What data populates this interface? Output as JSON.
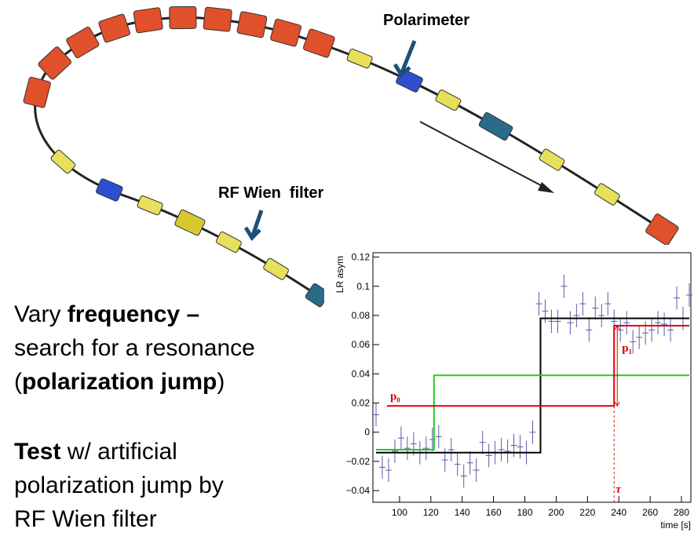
{
  "labels": {
    "polarimeter": "Polarimeter",
    "wien_filter": "RF Wien  filter"
  },
  "text_blocks": [
    {
      "lines": [
        [
          {
            "t": "Vary "
          },
          {
            "t": "frequency –",
            "b": true
          }
        ],
        [
          {
            "t": "search for a resonance"
          }
        ],
        [
          {
            "t": "("
          },
          {
            "t": "polarization jump",
            "b": true
          },
          {
            "t": ")"
          }
        ]
      ]
    },
    {
      "lines": [
        [
          {
            "t": "Test",
            "b": true
          },
          {
            "t": " w/ artificial"
          }
        ],
        [
          {
            "t": "polarization jump by"
          }
        ],
        [
          {
            "t": "RF Wien filter"
          }
        ]
      ]
    }
  ],
  "chart_data": {
    "type": "scatter",
    "ylabel": "LR asym",
    "xlabel": "time [s]",
    "color": "#5a5aa8",
    "x": [
      85,
      89,
      93,
      97,
      101,
      105,
      109,
      113,
      117,
      121,
      125,
      129,
      133,
      137,
      141,
      145,
      149,
      153,
      157,
      161,
      165,
      169,
      173,
      177,
      181,
      185,
      189,
      193,
      197,
      201,
      205,
      209,
      213,
      217,
      221,
      225,
      229,
      233,
      237,
      241,
      245,
      249,
      253,
      257,
      261,
      265,
      269,
      273,
      277,
      281,
      285
    ],
    "values": [
      0.012,
      -0.024,
      -0.026,
      -0.013,
      -0.004,
      -0.011,
      -0.008,
      -0.014,
      -0.011,
      -0.005,
      -0.003,
      -0.019,
      -0.012,
      -0.022,
      -0.03,
      -0.021,
      -0.026,
      -0.007,
      -0.016,
      -0.014,
      -0.012,
      -0.013,
      -0.009,
      -0.01,
      -0.014,
      0.0,
      0.088,
      0.083,
      0.076,
      0.076,
      0.1,
      0.075,
      0.08,
      0.088,
      0.07,
      0.085,
      0.08,
      0.088,
      0.076,
      0.07,
      0.075,
      0.062,
      0.065,
      0.068,
      0.07,
      0.075,
      0.074,
      0.07,
      0.092,
      0.078,
      0.094
    ],
    "errors": [
      0.008,
      0.008,
      0.008,
      0.008,
      0.008,
      0.008,
      0.008,
      0.008,
      0.008,
      0.008,
      0.008,
      0.008,
      0.008,
      0.008,
      0.008,
      0.008,
      0.008,
      0.008,
      0.008,
      0.008,
      0.008,
      0.008,
      0.008,
      0.008,
      0.008,
      0.008,
      0.008,
      0.008,
      0.008,
      0.008,
      0.008,
      0.008,
      0.008,
      0.008,
      0.008,
      0.008,
      0.008,
      0.008,
      0.008,
      0.008,
      0.008,
      0.008,
      0.008,
      0.008,
      0.008,
      0.008,
      0.008,
      0.008,
      0.008,
      0.008,
      0.008
    ],
    "step_lines": [
      {
        "color": "#000000",
        "x": [
          85,
          190,
          190,
          285
        ],
        "values": [
          -0.014,
          -0.014,
          0.078,
          0.078
        ]
      },
      {
        "color": "#22cc22",
        "x": [
          85,
          122,
          122,
          285
        ],
        "values": [
          -0.012,
          -0.012,
          0.039,
          0.039
        ]
      },
      {
        "color": "#dd0000",
        "x": [
          92,
          237,
          237,
          285
        ],
        "values": [
          0.018,
          0.018,
          0.073,
          0.073
        ]
      }
    ],
    "annotations": [
      "p₀",
      "p₁",
      "τ"
    ],
    "xlim": [
      83,
      286
    ],
    "ylim": [
      -0.048,
      0.123
    ],
    "xticks": [
      100,
      120,
      140,
      160,
      180,
      200,
      220,
      240,
      260,
      280
    ],
    "yticks": [
      {
        "value": -0.04,
        "label": "−0.04"
      },
      {
        "value": -0.02,
        "label": "−0.02"
      },
      0,
      0.02,
      0.04,
      0.06,
      0.08,
      0.1,
      0.12
    ]
  }
}
